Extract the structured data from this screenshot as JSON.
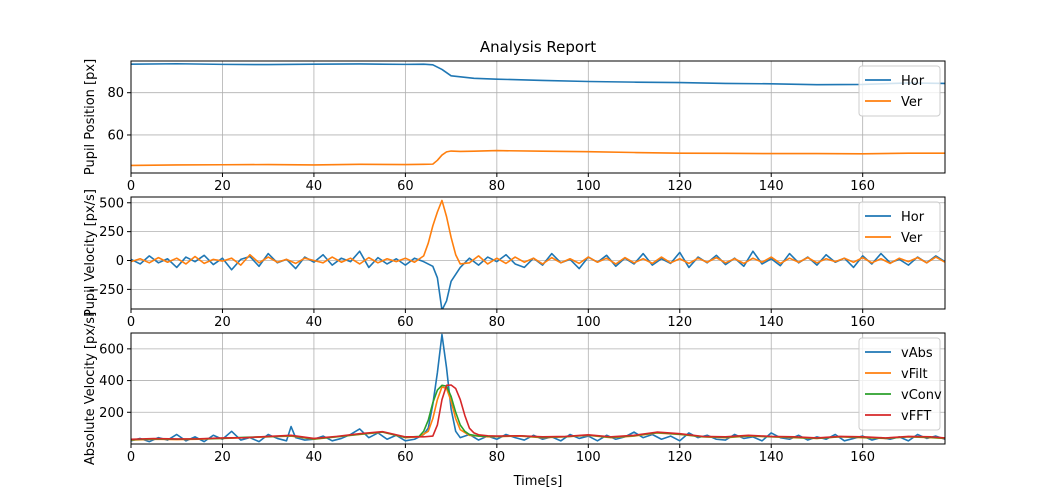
{
  "chart_data": {
    "title": "Analysis Report",
    "xlabel": "Time[s]",
    "xlim": [
      0,
      178
    ],
    "xticks": [
      0,
      20,
      40,
      60,
      80,
      100,
      120,
      140,
      160
    ],
    "grid": true,
    "panels": [
      {
        "type": "line",
        "ylabel": "Pupil Position [px]",
        "ylim": [
          42,
          95
        ],
        "yticks": [
          60,
          80
        ],
        "legend": "upper-right",
        "series": [
          {
            "name": "Hor",
            "color": "#1f77b4",
            "x": [
              0,
              10,
              20,
              30,
              40,
              50,
              60,
              64,
              66,
              68,
              70,
              75,
              80,
              90,
              100,
              110,
              120,
              130,
              140,
              150,
              160,
              170,
              178
            ],
            "y": [
              93.5,
              93.7,
              93.4,
              93.3,
              93.5,
              93.6,
              93.4,
              93.5,
              93.2,
              91.0,
              88.0,
              86.8,
              86.4,
              85.8,
              85.3,
              85.0,
              84.8,
              84.4,
              84.2,
              83.8,
              83.9,
              84.6,
              84.4
            ]
          },
          {
            "name": "Ver",
            "color": "#ff7f0e",
            "x": [
              0,
              10,
              20,
              30,
              40,
              50,
              60,
              64,
              66,
              67,
              68,
              69,
              70,
              72,
              75,
              80,
              90,
              100,
              110,
              120,
              130,
              140,
              150,
              160,
              170,
              178
            ],
            "y": [
              45.6,
              45.8,
              45.9,
              46.0,
              45.8,
              46.1,
              46.0,
              46.1,
              46.2,
              48.0,
              50.5,
              52.0,
              52.4,
              52.2,
              52.3,
              52.6,
              52.3,
              52.1,
              51.7,
              51.4,
              51.3,
              51.2,
              51.2,
              51.1,
              51.4,
              51.4
            ]
          }
        ]
      },
      {
        "type": "line",
        "ylabel": "Pupil Velocity [px/s]",
        "ylim": [
          -420,
          550
        ],
        "yticks": [
          -250,
          0,
          250,
          500
        ],
        "legend": "upper-right",
        "series": [
          {
            "name": "Hor",
            "color": "#1f77b4",
            "x": [
              0,
              2,
              4,
              6,
              8,
              10,
              12,
              14,
              16,
              18,
              20,
              22,
              24,
              26,
              28,
              30,
              32,
              34,
              36,
              38,
              40,
              42,
              44,
              46,
              48,
              50,
              52,
              54,
              56,
              58,
              60,
              62,
              64,
              66,
              67,
              68,
              69,
              70,
              72,
              74,
              76,
              78,
              80,
              82,
              84,
              86,
              88,
              90,
              92,
              94,
              96,
              98,
              100,
              102,
              104,
              106,
              108,
              110,
              112,
              114,
              116,
              118,
              120,
              122,
              124,
              126,
              128,
              130,
              132,
              134,
              136,
              138,
              140,
              142,
              144,
              146,
              148,
              150,
              152,
              154,
              156,
              158,
              160,
              162,
              164,
              166,
              168,
              170,
              172,
              174,
              176,
              178
            ],
            "y": [
              10,
              -30,
              40,
              -20,
              15,
              -60,
              30,
              -10,
              45,
              -35,
              20,
              -80,
              10,
              35,
              -50,
              60,
              -20,
              10,
              -70,
              30,
              -15,
              50,
              -40,
              20,
              -10,
              80,
              -60,
              25,
              -30,
              15,
              -40,
              20,
              -10,
              -50,
              -150,
              -430,
              -350,
              -180,
              -60,
              20,
              -40,
              30,
              -10,
              50,
              -30,
              -60,
              20,
              -40,
              60,
              -20,
              10,
              -70,
              30,
              -15,
              45,
              -50,
              20,
              -30,
              60,
              -40,
              15,
              -25,
              70,
              -60,
              30,
              -20,
              45,
              -35,
              20,
              -50,
              80,
              -30,
              15,
              -45,
              60,
              -20,
              30,
              -40,
              50,
              -15,
              20,
              -60,
              40,
              -30,
              60,
              -20,
              10,
              -40,
              30,
              -20,
              40,
              -10
            ]
          },
          {
            "name": "Ver",
            "color": "#ff7f0e",
            "x": [
              0,
              2,
              4,
              6,
              8,
              10,
              12,
              14,
              16,
              18,
              20,
              22,
              24,
              26,
              28,
              30,
              32,
              34,
              36,
              38,
              40,
              42,
              44,
              46,
              48,
              50,
              52,
              54,
              56,
              58,
              60,
              62,
              64,
              65,
              66,
              67,
              68,
              69,
              70,
              71,
              72,
              74,
              76,
              78,
              80,
              82,
              84,
              86,
              88,
              90,
              92,
              94,
              96,
              98,
              100,
              102,
              104,
              106,
              108,
              110,
              112,
              114,
              116,
              118,
              120,
              122,
              124,
              126,
              128,
              130,
              132,
              134,
              136,
              138,
              140,
              142,
              144,
              146,
              148,
              150,
              152,
              154,
              156,
              158,
              160,
              162,
              164,
              166,
              168,
              170,
              172,
              174,
              176,
              178
            ],
            "y": [
              -10,
              15,
              -20,
              25,
              -15,
              20,
              -30,
              35,
              -25,
              10,
              -5,
              20,
              -40,
              50,
              -20,
              30,
              -15,
              10,
              -25,
              20,
              0,
              -20,
              30,
              -15,
              20,
              -30,
              25,
              -20,
              15,
              -10,
              20,
              -15,
              40,
              150,
              300,
              420,
              520,
              380,
              200,
              50,
              -30,
              -20,
              40,
              -30,
              20,
              -25,
              30,
              -15,
              20,
              -30,
              25,
              -20,
              15,
              -25,
              30,
              -15,
              20,
              -30,
              25,
              -20,
              15,
              -25,
              30,
              -20,
              15,
              -25,
              20,
              -15,
              25,
              -20,
              15,
              -25,
              20,
              -15,
              30,
              -25,
              20,
              -15,
              25,
              -20,
              15,
              -10,
              20,
              -15,
              25,
              -20,
              15,
              -25,
              20,
              -10,
              25,
              -20,
              30,
              -15
            ]
          }
        ]
      },
      {
        "type": "line",
        "ylabel": "Absolute Velocity [px/s]",
        "ylim": [
          0,
          700
        ],
        "yticks": [
          200,
          400,
          600
        ],
        "legend": "upper-right",
        "series": [
          {
            "name": "vAbs",
            "color": "#1f77b4",
            "x": [
              0,
              2,
              4,
              6,
              8,
              10,
              12,
              14,
              16,
              18,
              20,
              22,
              24,
              26,
              28,
              30,
              32,
              34,
              35,
              36,
              38,
              40,
              42,
              44,
              46,
              48,
              50,
              52,
              54,
              56,
              58,
              60,
              62,
              64,
              65,
              66,
              67,
              68,
              69,
              70,
              71,
              72,
              74,
              76,
              78,
              80,
              82,
              84,
              86,
              88,
              90,
              92,
              94,
              96,
              98,
              100,
              102,
              104,
              106,
              108,
              110,
              112,
              114,
              116,
              118,
              120,
              122,
              124,
              126,
              128,
              130,
              132,
              134,
              136,
              138,
              140,
              142,
              144,
              146,
              148,
              150,
              152,
              154,
              156,
              158,
              160,
              162,
              164,
              166,
              168,
              170,
              172,
              174,
              176,
              178
            ],
            "y": [
              20,
              35,
              15,
              40,
              25,
              60,
              20,
              45,
              15,
              55,
              30,
              80,
              25,
              40,
              15,
              60,
              35,
              20,
              110,
              40,
              25,
              30,
              50,
              20,
              35,
              60,
              95,
              40,
              70,
              30,
              55,
              20,
              30,
              60,
              100,
              250,
              450,
              690,
              480,
              220,
              80,
              40,
              60,
              25,
              50,
              30,
              60,
              40,
              25,
              55,
              30,
              45,
              20,
              60,
              35,
              50,
              20,
              55,
              30,
              45,
              75,
              40,
              60,
              30,
              50,
              20,
              70,
              40,
              55,
              30,
              25,
              60,
              35,
              45,
              20,
              70,
              40,
              30,
              55,
              25,
              45,
              30,
              60,
              20,
              35,
              50,
              25,
              40,
              30,
              45,
              20,
              60,
              35,
              50,
              30
            ]
          },
          {
            "name": "vFilt",
            "color": "#ff7f0e",
            "x": [
              0,
              5,
              10,
              15,
              20,
              25,
              30,
              35,
              40,
              45,
              50,
              55,
              60,
              63,
              65,
              66,
              67,
              68,
              69,
              70,
              71,
              72,
              74,
              78,
              85,
              90,
              95,
              100,
              105,
              110,
              115,
              120,
              125,
              130,
              135,
              140,
              145,
              150,
              155,
              160,
              165,
              170,
              175,
              178
            ],
            "y": [
              25,
              30,
              28,
              30,
              35,
              40,
              45,
              50,
              30,
              45,
              60,
              75,
              40,
              45,
              80,
              160,
              280,
              360,
              350,
              270,
              160,
              90,
              55,
              45,
              50,
              40,
              45,
              55,
              40,
              50,
              70,
              60,
              45,
              40,
              50,
              45,
              40,
              35,
              45,
              40,
              35,
              45,
              40,
              35
            ]
          },
          {
            "name": "vConv",
            "color": "#2ca02c",
            "x": [
              0,
              5,
              10,
              15,
              20,
              25,
              30,
              35,
              40,
              45,
              50,
              55,
              60,
              63,
              64,
              65,
              66,
              67,
              68,
              69,
              70,
              71,
              72,
              73,
              74,
              76,
              80,
              85,
              90,
              95,
              100,
              105,
              110,
              115,
              120,
              125,
              130,
              135,
              140,
              145,
              150,
              155,
              160,
              165,
              170,
              175,
              178
            ],
            "y": [
              28,
              32,
              30,
              32,
              36,
              42,
              46,
              52,
              32,
              46,
              62,
              76,
              42,
              48,
              80,
              150,
              260,
              340,
              370,
              365,
              300,
              200,
              120,
              80,
              60,
              50,
              48,
              52,
              42,
              46,
              56,
              42,
              52,
              72,
              62,
              46,
              42,
              52,
              46,
              42,
              36,
              46,
              42,
              36,
              46,
              42,
              36
            ]
          },
          {
            "name": "vFFT",
            "color": "#d62728",
            "x": [
              0,
              5,
              10,
              15,
              20,
              25,
              30,
              35,
              40,
              45,
              50,
              55,
              60,
              64,
              66,
              67,
              68,
              69,
              70,
              71,
              72,
              73,
              74,
              75,
              76,
              78,
              80,
              85,
              90,
              95,
              100,
              105,
              110,
              115,
              120,
              125,
              130,
              135,
              140,
              145,
              150,
              155,
              160,
              165,
              170,
              175,
              178
            ],
            "y": [
              30,
              34,
              32,
              33,
              38,
              40,
              48,
              55,
              35,
              48,
              65,
              78,
              45,
              45,
              50,
              120,
              280,
              370,
              372,
              350,
              280,
              180,
              100,
              70,
              58,
              52,
              50,
              52,
              45,
              48,
              58,
              45,
              55,
              75,
              65,
              48,
              45,
              55,
              48,
              45,
              38,
              48,
              45,
              38,
              48,
              45,
              38
            ]
          }
        ]
      }
    ]
  }
}
